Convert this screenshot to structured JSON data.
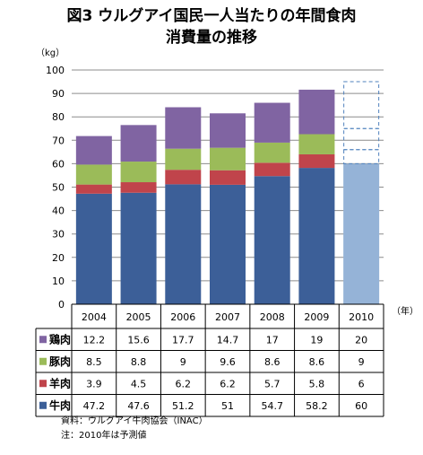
{
  "title_line1": "図3 ウルグアイ国民一人当たりの年間食肉",
  "title_line2": "消費量の推移",
  "y_unit": "（kg）",
  "x_unit": "（年）",
  "source_note": "資料：ウルグアイ牛肉協会（INAC）",
  "forecast_note": "注：2010年は予測値",
  "colors": {
    "beef": "#3c5f98",
    "lamb": "#c0444b",
    "pork": "#9bbb59",
    "chicken": "#8064a2",
    "forecast_fill": "#95b3d7",
    "forecast_outline": "#4f81bd"
  },
  "chart_data": {
    "type": "bar",
    "stacked": true,
    "categories": [
      "2004",
      "2005",
      "2006",
      "2007",
      "2008",
      "2009",
      "2010"
    ],
    "ylim": [
      0,
      100
    ],
    "yticks": [
      0,
      10,
      20,
      30,
      40,
      50,
      60,
      70,
      80,
      90,
      100
    ],
    "grid": true,
    "forecast_category": "2010",
    "series": [
      {
        "name": "牛肉",
        "key": "beef",
        "values": [
          47.2,
          47.6,
          51.2,
          51,
          54.7,
          58.2,
          60
        ],
        "labels": [
          "47.2",
          "47.6",
          "51.2",
          "51",
          "54.7",
          "58.2",
          "60"
        ]
      },
      {
        "name": "羊肉",
        "key": "lamb",
        "values": [
          3.9,
          4.5,
          6.2,
          6.2,
          5.7,
          5.8,
          6
        ],
        "labels": [
          "3.9",
          "4.5",
          "6.2",
          "6.2",
          "5.7",
          "5.8",
          "6"
        ]
      },
      {
        "name": "豚肉",
        "key": "pork",
        "values": [
          8.5,
          8.8,
          9,
          9.6,
          8.6,
          8.6,
          9
        ],
        "labels": [
          "8.5",
          "8.8",
          "9",
          "9.6",
          "8.6",
          "8.6",
          "9"
        ]
      },
      {
        "name": "鶏肉",
        "key": "chicken",
        "values": [
          12.2,
          15.6,
          17.7,
          14.7,
          17,
          19,
          20
        ],
        "labels": [
          "12.2",
          "15.6",
          "17.7",
          "14.7",
          "17",
          "19",
          "20"
        ]
      }
    ]
  }
}
